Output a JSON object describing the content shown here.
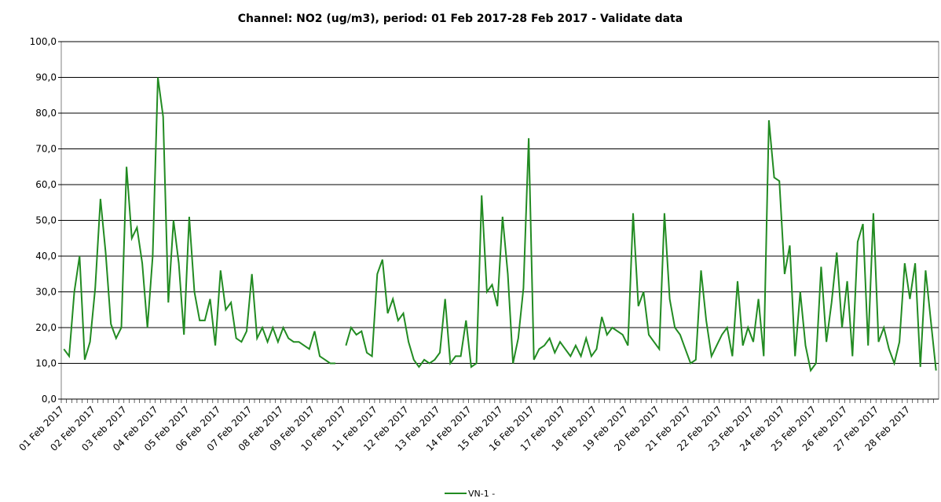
{
  "chart_data": {
    "type": "line",
    "title": "Channel: NO2 (ug/m3), period: 01 Feb 2017-28 Feb 2017 - Validate data",
    "categories": [
      "01 Feb 2017",
      null,
      null,
      null,
      null,
      null,
      "02 Feb 2017",
      null,
      null,
      null,
      null,
      null,
      "03 Feb 2017",
      null,
      null,
      null,
      null,
      null,
      "04 Feb 2017",
      null,
      null,
      null,
      null,
      null,
      "05 Feb 2017",
      null,
      null,
      null,
      null,
      null,
      "06 Feb 2017",
      null,
      null,
      null,
      null,
      null,
      "07 Feb 2017",
      null,
      null,
      null,
      null,
      null,
      "08 Feb 2017",
      null,
      null,
      null,
      null,
      null,
      "09 Feb 2017",
      null,
      null,
      null,
      null,
      null,
      "10 Feb 2017",
      null,
      null,
      null,
      null,
      null,
      "11 Feb 2017",
      null,
      null,
      null,
      null,
      null,
      "12 Feb 2017",
      null,
      null,
      null,
      null,
      null,
      "13 Feb 2017",
      null,
      null,
      null,
      null,
      null,
      "14 Feb 2017",
      null,
      null,
      null,
      null,
      null,
      "15 Feb 2017",
      null,
      null,
      null,
      null,
      null,
      "16 Feb 2017",
      null,
      null,
      null,
      null,
      null,
      "17 Feb 2017",
      null,
      null,
      null,
      null,
      null,
      "18 Feb 2017",
      null,
      null,
      null,
      null,
      null,
      "19 Feb 2017",
      null,
      null,
      null,
      null,
      null,
      "20 Feb 2017",
      null,
      null,
      null,
      null,
      null,
      "21 Feb 2017",
      null,
      null,
      null,
      null,
      null,
      "22 Feb 2017",
      null,
      null,
      null,
      null,
      null,
      "23 Feb 2017",
      null,
      null,
      null,
      null,
      null,
      "24 Feb 2017",
      null,
      null,
      null,
      null,
      null,
      "25 Feb 2017",
      null,
      null,
      null,
      null,
      null,
      "26 Feb 2017",
      null,
      null,
      null,
      null,
      null,
      "27 Feb 2017",
      null,
      null,
      null,
      null,
      null,
      "28 Feb 2017",
      null,
      null,
      null,
      null,
      null
    ],
    "series": [
      {
        "name": "VN-1 -",
        "color": "#228b22",
        "values": [
          14,
          12,
          30,
          40,
          11,
          16,
          31,
          56,
          41,
          21,
          17,
          20,
          65,
          45,
          48,
          38,
          20,
          40,
          90,
          79,
          27,
          50,
          38,
          18,
          51,
          30,
          22,
          22,
          28,
          15,
          36,
          25,
          27,
          17,
          16,
          19,
          35,
          17,
          20,
          16,
          20,
          16,
          20,
          17,
          16,
          16,
          15,
          14,
          19,
          12,
          11,
          10,
          10,
          null,
          15,
          20,
          18,
          19,
          13,
          12,
          35,
          39,
          24,
          28,
          22,
          24,
          16,
          11,
          9,
          11,
          10,
          11,
          13,
          28,
          10,
          12,
          12,
          22,
          9,
          10,
          57,
          30,
          32,
          26,
          51,
          35,
          10,
          17,
          31,
          73,
          11,
          14,
          15,
          17,
          13,
          16,
          14,
          12,
          15,
          12,
          17,
          12,
          14,
          23,
          18,
          20,
          19,
          18,
          15,
          52,
          26,
          30,
          18,
          16,
          14,
          52,
          28,
          20,
          18,
          14,
          10,
          11,
          36,
          22,
          12,
          15,
          18,
          20,
          12,
          33,
          15,
          20,
          16,
          28,
          12,
          78,
          62,
          61,
          35,
          43,
          12,
          30,
          15,
          8,
          10,
          37,
          16,
          27,
          41,
          20,
          33,
          12,
          44,
          49,
          15,
          52,
          16,
          20,
          14,
          10,
          16,
          38,
          28,
          38,
          9,
          36,
          22,
          8
        ]
      }
    ],
    "ylim": [
      0,
      100
    ],
    "yticks": [
      {
        "value": 0,
        "label": "0,0"
      },
      {
        "value": 10,
        "label": "10,0"
      },
      {
        "value": 20,
        "label": "20,0"
      },
      {
        "value": 30,
        "label": "30,0"
      },
      {
        "value": 40,
        "label": "40,0"
      },
      {
        "value": 50,
        "label": "50,0"
      },
      {
        "value": 60,
        "label": "60,0"
      },
      {
        "value": 70,
        "label": "70,0"
      },
      {
        "value": 80,
        "label": "80,0"
      },
      {
        "value": 90,
        "label": "90,0"
      },
      {
        "value": 100,
        "label": "100,0"
      }
    ],
    "grid": true,
    "legend": "bottom"
  }
}
